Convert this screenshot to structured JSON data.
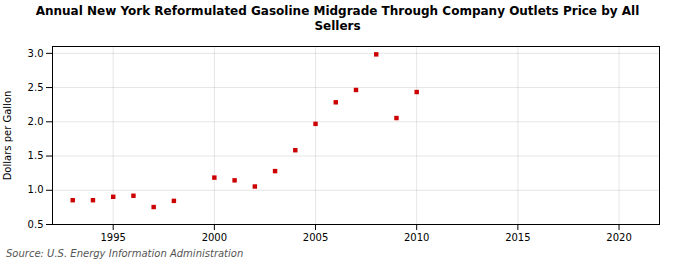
{
  "chart_data": {
    "type": "scatter",
    "title": "Annual New York Reformulated Gasoline Midgrade Through Company Outlets Price by All\nSellers",
    "ylabel": "Dollars per Gallon",
    "annotations": [
      "Source: U.S. Energy Information Administration"
    ],
    "x": [
      1993,
      1994,
      1995,
      1996,
      1997,
      1998,
      2000,
      2001,
      2002,
      2003,
      2004,
      2005,
      2006,
      2007,
      2008,
      2009,
      2010
    ],
    "values": [
      0.855,
      0.855,
      0.905,
      0.92,
      0.755,
      0.845,
      1.185,
      1.145,
      1.055,
      1.28,
      1.585,
      1.97,
      2.285,
      2.465,
      2.985,
      2.055,
      2.435
    ],
    "color": "#cc0000",
    "marker": "square",
    "xlim": [
      1992,
      2022
    ],
    "ylim": [
      0.5,
      3.1
    ],
    "xticks": [
      1995,
      2000,
      2005,
      2010,
      2015,
      2020
    ],
    "yticks": [
      0.5,
      {
        "value": 1.0,
        "label": "1.0"
      },
      1.5,
      {
        "value": 2.0,
        "label": "2.0"
      },
      2.5,
      {
        "value": 3.0,
        "label": "3.0"
      }
    ],
    "grid": true
  }
}
